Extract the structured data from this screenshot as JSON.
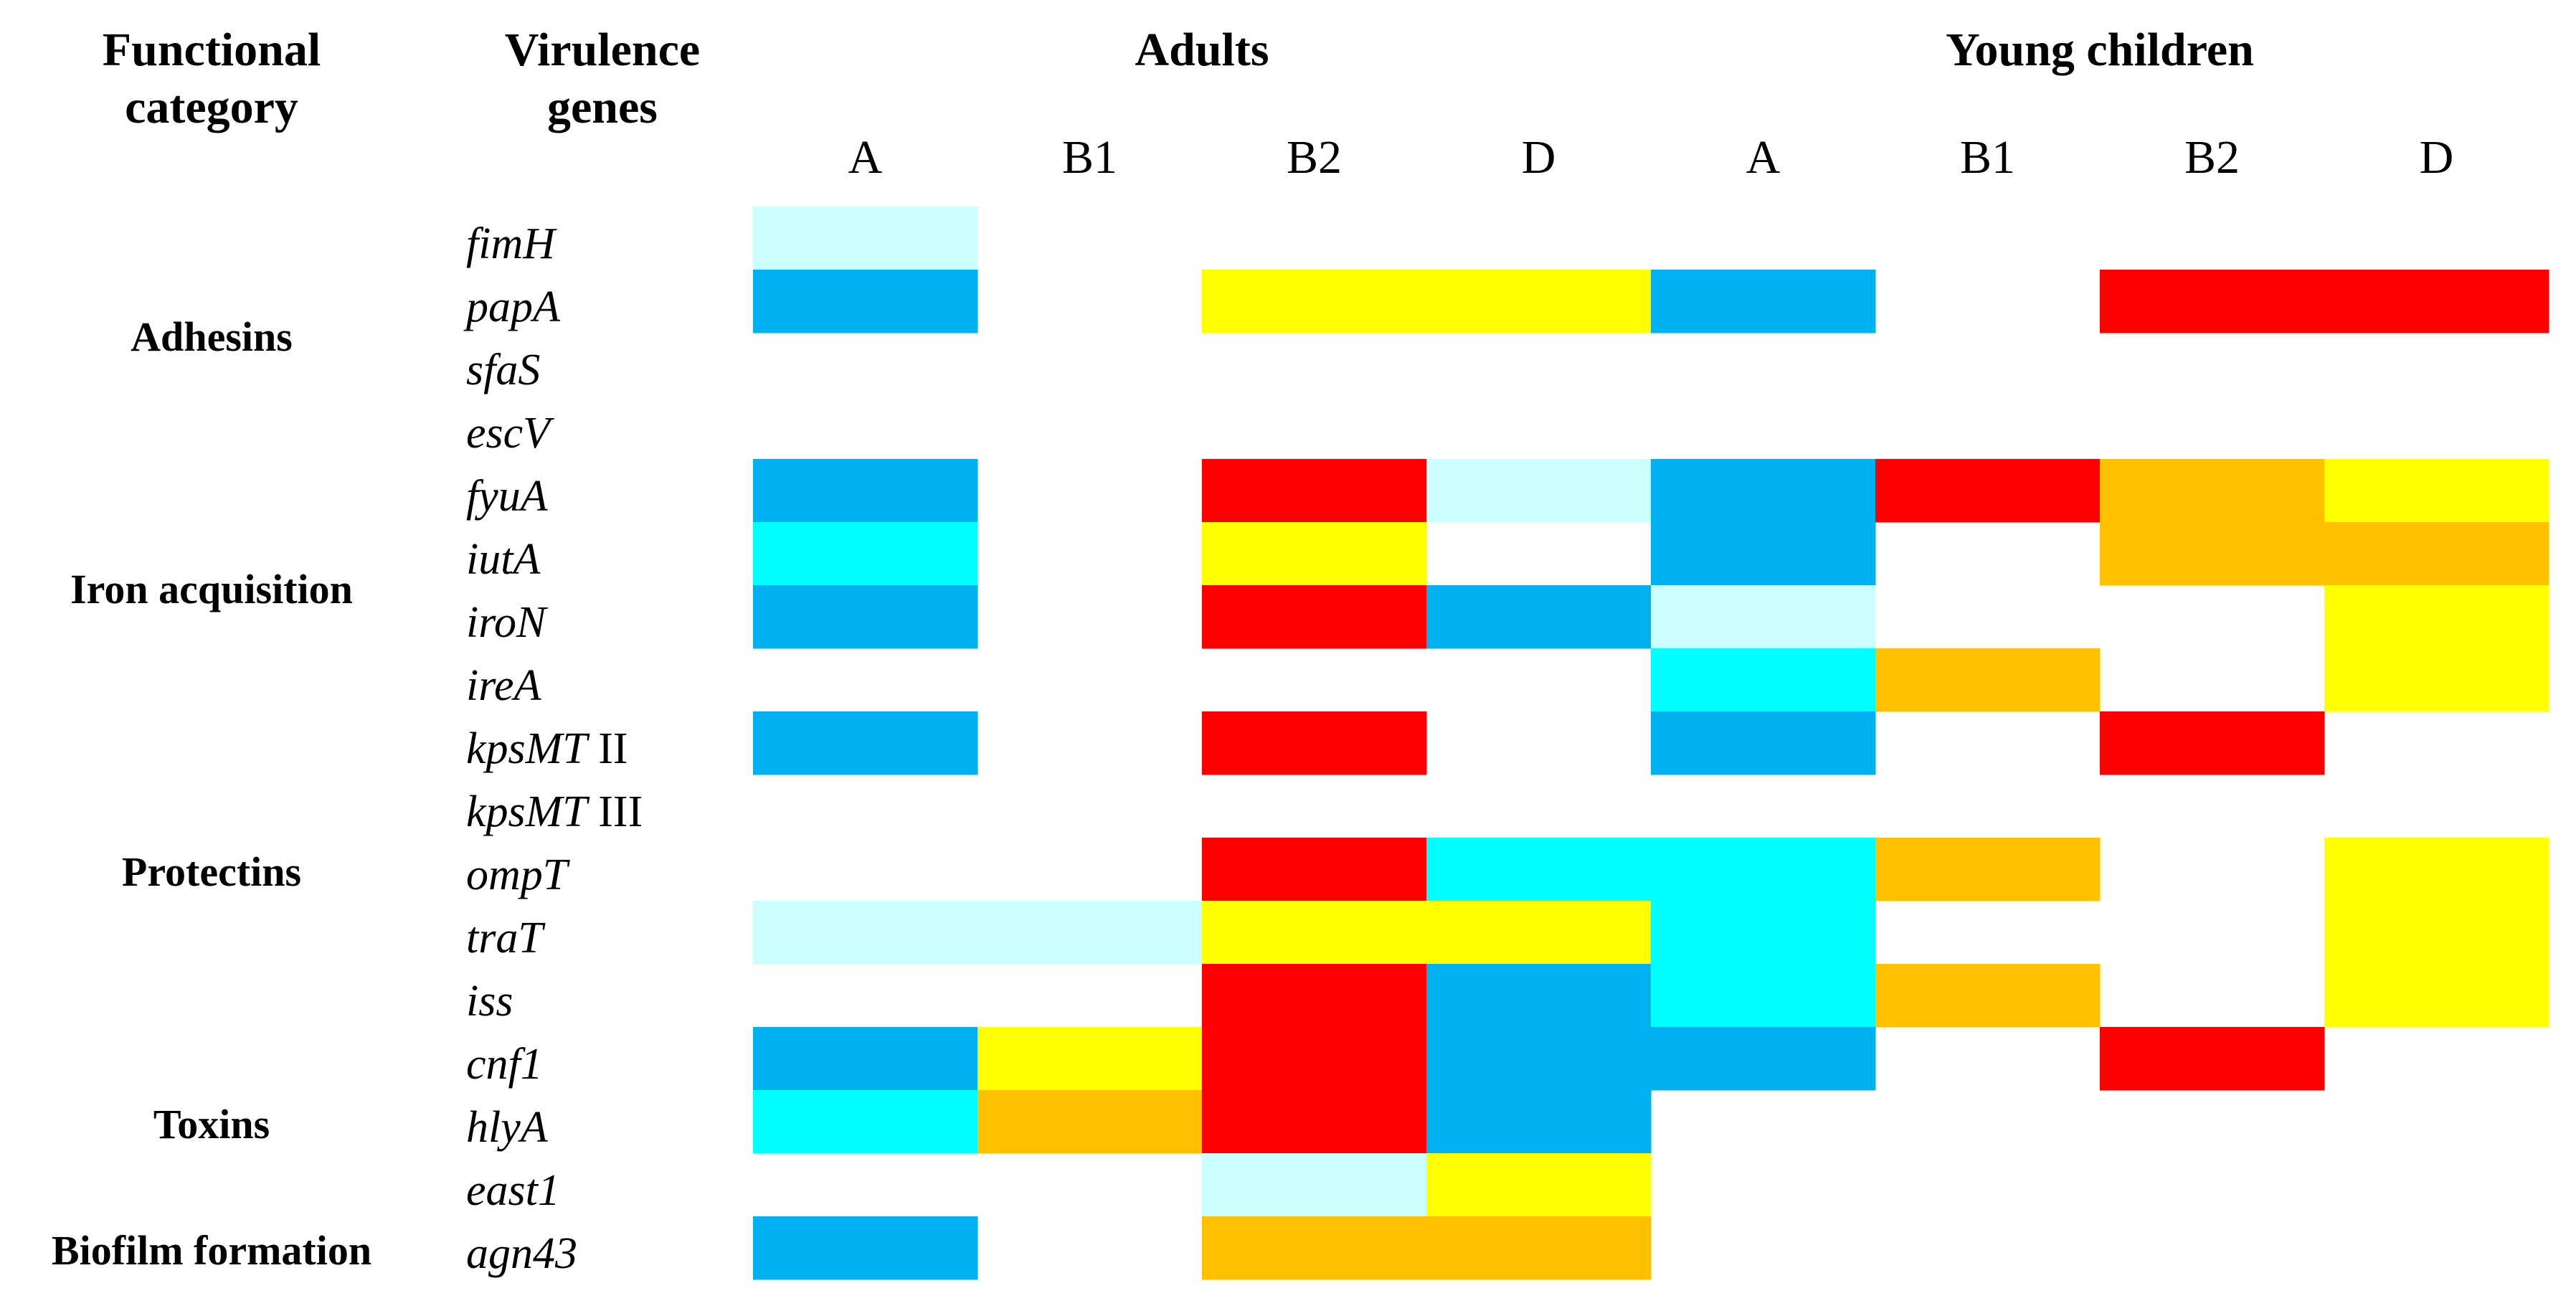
{
  "chart_data": {
    "type": "heatmap",
    "title": "",
    "header_functional_category": [
      "Functional",
      "category"
    ],
    "header_virulence_genes": [
      "Virulence",
      "genes"
    ],
    "groups": [
      "Adults",
      "Young children"
    ],
    "phylogroups": [
      "A",
      "B1",
      "B2",
      "D"
    ],
    "columns": [
      "Adults A",
      "Adults B1",
      "Adults B2",
      "Adults D",
      "Young children A",
      "Young children B1",
      "Young children B2",
      "Young children D"
    ],
    "genes": [
      {
        "name": "fimH",
        "suffix": ""
      },
      {
        "name": "papA",
        "suffix": ""
      },
      {
        "name": "sfaS",
        "suffix": ""
      },
      {
        "name": "escV",
        "suffix": ""
      },
      {
        "name": "fyuA",
        "suffix": ""
      },
      {
        "name": "iutA",
        "suffix": ""
      },
      {
        "name": "iroN",
        "suffix": ""
      },
      {
        "name": "ireA",
        "suffix": ""
      },
      {
        "name": "kpsMT",
        "suffix": " II"
      },
      {
        "name": "kpsMT",
        "suffix": " III"
      },
      {
        "name": "ompT",
        "suffix": ""
      },
      {
        "name": "traT",
        "suffix": ""
      },
      {
        "name": "iss",
        "suffix": ""
      },
      {
        "name": "cnf1",
        "suffix": ""
      },
      {
        "name": "hlyA",
        "suffix": ""
      },
      {
        "name": "east1",
        "suffix": ""
      },
      {
        "name": "agn43",
        "suffix": ""
      }
    ],
    "categories": [
      {
        "label": "Adhesins",
        "rows": [
          0,
          3
        ]
      },
      {
        "label": "Iron acquisition",
        "rows": [
          4,
          7
        ]
      },
      {
        "label": "Protectins",
        "rows": [
          8,
          12
        ]
      },
      {
        "label": "Toxins",
        "rows": [
          13,
          15
        ]
      },
      {
        "label": "Biofilm formation",
        "rows": [
          16,
          16
        ]
      }
    ],
    "color_levels": {
      "light_cyan": "#ccffff",
      "blue": "#00b0f0",
      "cyan": "#00ffff",
      "yellow": "#ffff00",
      "orange": "#ffc000",
      "red": "#ff0000"
    },
    "cells": [
      [
        "light_cyan",
        null,
        null,
        null,
        null,
        null,
        null,
        null
      ],
      [
        "blue",
        null,
        "yellow",
        "yellow",
        "blue",
        null,
        "red",
        "red"
      ],
      [
        null,
        null,
        null,
        null,
        null,
        null,
        null,
        null
      ],
      [
        null,
        null,
        null,
        null,
        null,
        null,
        null,
        null
      ],
      [
        "blue",
        null,
        "red",
        "light_cyan",
        "blue",
        "red",
        "orange",
        "yellow"
      ],
      [
        "cyan",
        null,
        "yellow",
        null,
        "blue",
        null,
        "orange",
        "orange"
      ],
      [
        "blue",
        null,
        "red",
        "blue",
        "light_cyan",
        null,
        null,
        "yellow"
      ],
      [
        null,
        null,
        null,
        null,
        "cyan",
        "orange",
        null,
        "yellow"
      ],
      [
        "blue",
        null,
        "red",
        null,
        "blue",
        null,
        "red",
        null
      ],
      [
        null,
        null,
        null,
        null,
        null,
        null,
        null,
        null
      ],
      [
        null,
        null,
        "red",
        "cyan",
        "cyan",
        "orange",
        null,
        "yellow"
      ],
      [
        "light_cyan",
        "light_cyan",
        "yellow",
        "yellow",
        "cyan",
        null,
        null,
        "yellow"
      ],
      [
        null,
        null,
        "red",
        "blue",
        "cyan",
        "orange",
        null,
        "yellow"
      ],
      [
        "blue",
        "yellow",
        "red",
        "blue",
        "blue",
        null,
        "red",
        null
      ],
      [
        "cyan",
        "orange",
        "red",
        "blue",
        null,
        null,
        null,
        null
      ],
      [
        null,
        null,
        "light_cyan",
        "yellow",
        null,
        null,
        null,
        null
      ],
      [
        "blue",
        null,
        "orange",
        "orange",
        null,
        null,
        null,
        null
      ]
    ]
  }
}
